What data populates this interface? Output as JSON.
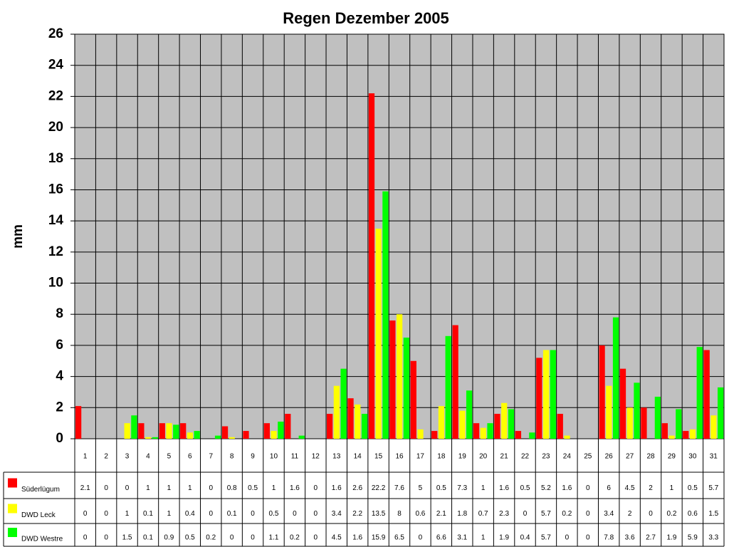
{
  "chart_data": {
    "type": "bar",
    "title": "Regen Dezember 2005",
    "y_label": "mm",
    "categories": [
      "1",
      "2",
      "3",
      "4",
      "5",
      "6",
      "7",
      "8",
      "9",
      "10",
      "11",
      "12",
      "13",
      "14",
      "15",
      "16",
      "17",
      "18",
      "19",
      "20",
      "21",
      "22",
      "23",
      "24",
      "25",
      "26",
      "27",
      "28",
      "29",
      "30",
      "31"
    ],
    "series": [
      {
        "name": "Süderlügum",
        "color": "#ff0000",
        "values": [
          2.1,
          0,
          0,
          1,
          1,
          1,
          0,
          0.8,
          0.5,
          1,
          1.6,
          0,
          1.6,
          2.6,
          22.2,
          7.6,
          5,
          0.5,
          7.3,
          1,
          1.6,
          0.5,
          5.2,
          1.6,
          0,
          6,
          4.5,
          2,
          1,
          0.5,
          5.7
        ]
      },
      {
        "name": "DWD Leck",
        "color": "#ffff00",
        "values": [
          0,
          0,
          1,
          0.1,
          1,
          0.4,
          0,
          0.1,
          0,
          0.5,
          0,
          0,
          3.4,
          2.2,
          13.5,
          8,
          0.6,
          2.1,
          1.8,
          0.7,
          2.3,
          0,
          5.7,
          0.2,
          0,
          3.4,
          2,
          0,
          0.2,
          0.6,
          1.5
        ]
      },
      {
        "name": "DWD Westre",
        "color": "#00ff00",
        "values": [
          0,
          0,
          1.5,
          0.1,
          0.9,
          0.5,
          0.2,
          0,
          0,
          1.1,
          0.2,
          0,
          4.5,
          1.6,
          15.9,
          6.5,
          0,
          6.6,
          3.1,
          1,
          1.9,
          0.4,
          5.7,
          0,
          0,
          7.8,
          3.6,
          2.7,
          1.9,
          5.9,
          3.3
        ]
      }
    ],
    "ylim": [
      0,
      26
    ],
    "yticks": [
      0,
      2,
      4,
      6,
      8,
      10,
      12,
      14,
      16,
      18,
      20,
      22,
      24,
      26
    ],
    "grid": true,
    "plot_background": "#c0c0c0"
  }
}
